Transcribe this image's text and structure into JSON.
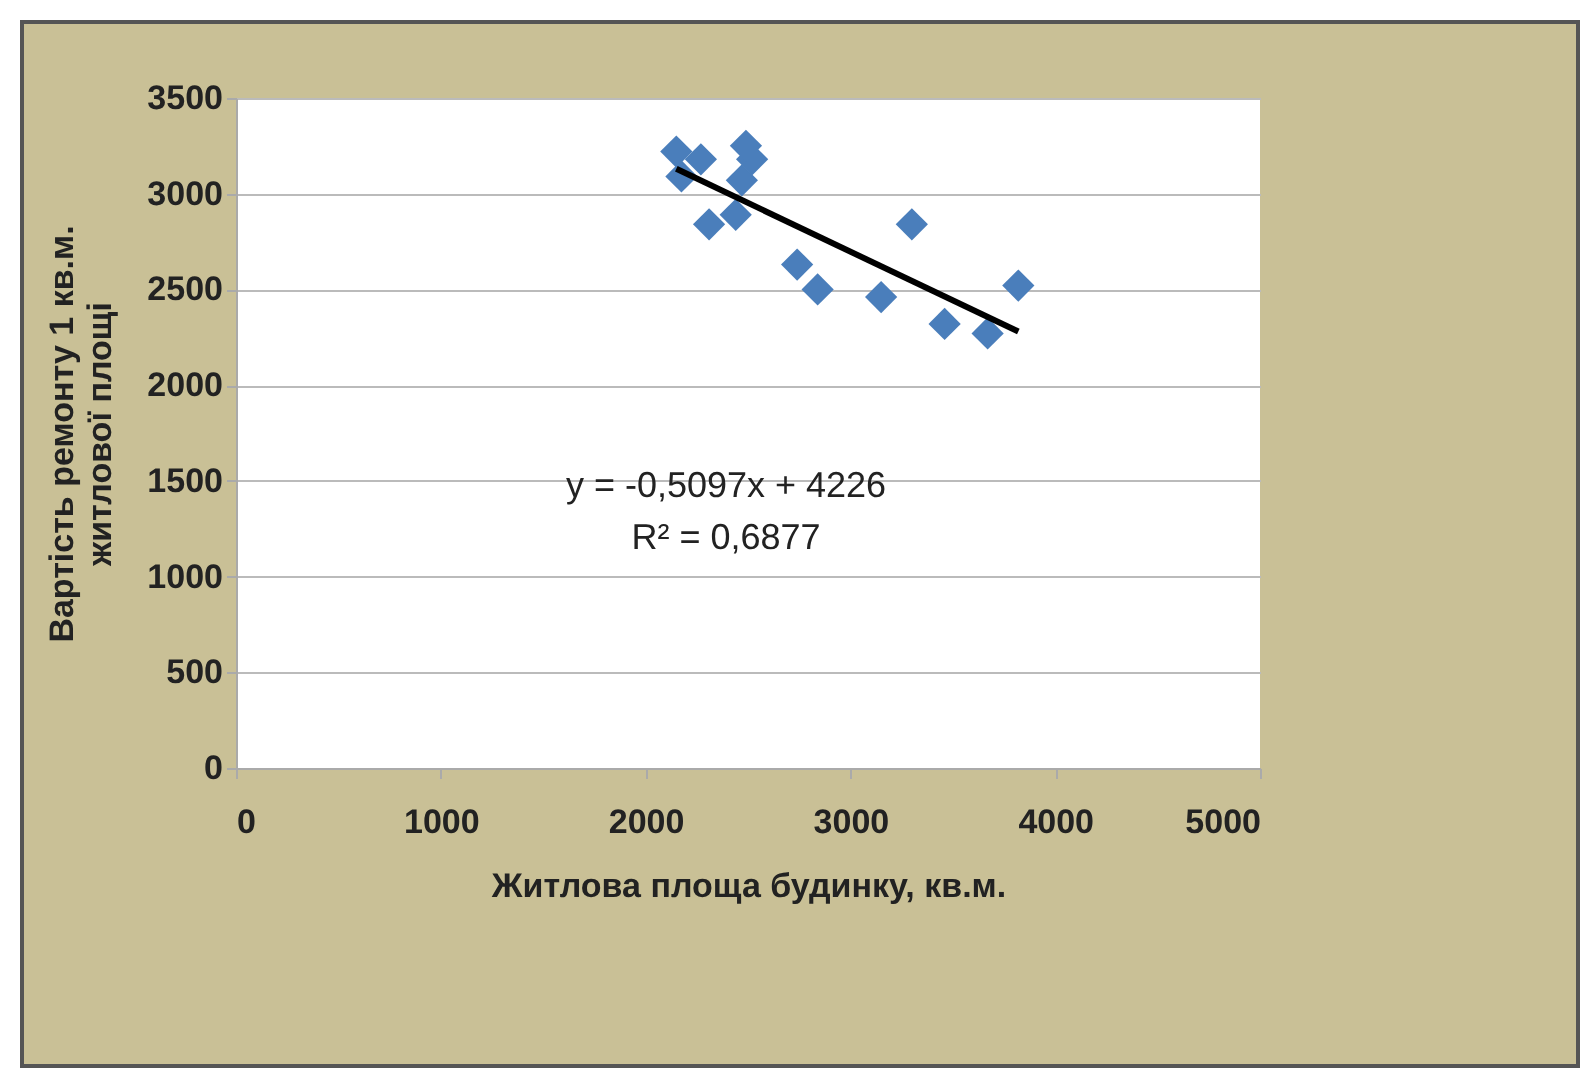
{
  "chart_data": {
    "type": "scatter",
    "xlabel": "Житлова  площа будинку, кв.м.",
    "ylabel": "Вартість ремонту  1 кв.м. житлової площі",
    "annotations": [
      "y = -0,5097x + 4226",
      "R² = 0,6877"
    ],
    "xlim": [
      0,
      5000
    ],
    "xticks": [
      0,
      1000,
      2000,
      3000,
      4000,
      5000
    ],
    "ylim": [
      0,
      3500
    ],
    "yticks": [
      0,
      500,
      1000,
      1500,
      2000,
      2500,
      3000,
      3500
    ],
    "grid": "y",
    "series": [
      {
        "color": "#4a7ebb",
        "marker": "diamond",
        "x": [
          2150,
          2175,
          2270,
          2310,
          2440,
          2470,
          2520,
          2490,
          2740,
          2840,
          3150,
          3300,
          3460,
          3670,
          3820
        ],
        "values": [
          3220,
          3090,
          3180,
          2840,
          2890,
          3070,
          3180,
          3250,
          2630,
          2500,
          2460,
          2840,
          2320,
          2270,
          2520
        ]
      },
      {
        "type": "line",
        "color": "#000000",
        "marker": "none",
        "x": [
          2150,
          3820
        ],
        "values": [
          3130,
          2280
        ]
      }
    ]
  }
}
